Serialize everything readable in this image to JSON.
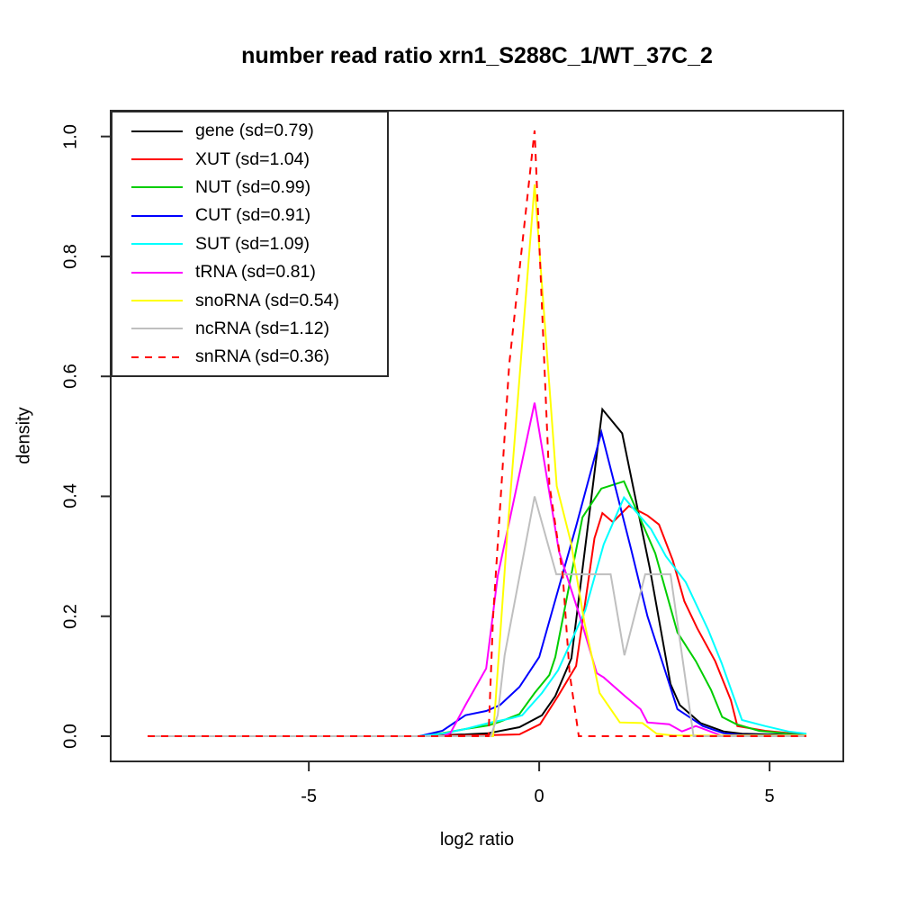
{
  "figure": {
    "title": "number read ratio xrn1_S288C_1/WT_37C_2",
    "xlabel": "log2 ratio",
    "ylabel": "density"
  },
  "colors": {
    "axis": "#2a2a2a",
    "background": "#ffffff"
  },
  "chart_data": {
    "type": "line",
    "title": "number read ratio xrn1_S288C_1/WT_37C_2",
    "xlabel": "log2 ratio",
    "ylabel": "density",
    "xlim": [
      -9.3,
      6.6
    ],
    "ylim": [
      -0.042,
      1.043
    ],
    "xticks": [
      "-5",
      "0",
      "5"
    ],
    "yticks": [
      "0.0",
      "0.2",
      "0.4",
      "0.6",
      "0.8",
      "1.0"
    ],
    "grid": false,
    "legend_position": "topleft",
    "series": [
      {
        "name": "gene",
        "label": "gene (sd=0.79)",
        "color": "#000000",
        "linestyle": "solid",
        "points": [
          [
            -8.5,
            0
          ],
          [
            -2.6,
            0
          ],
          [
            -2.1,
            0.002
          ],
          [
            -1.6,
            0.003
          ],
          [
            -1.1,
            0.005
          ],
          [
            -0.9,
            0.008
          ],
          [
            -0.43,
            0.015
          ],
          [
            0.06,
            0.035
          ],
          [
            0.35,
            0.067
          ],
          [
            0.7,
            0.13
          ],
          [
            1.37,
            0.545
          ],
          [
            1.8,
            0.505
          ],
          [
            2.4,
            0.28
          ],
          [
            2.85,
            0.087
          ],
          [
            3.05,
            0.052
          ],
          [
            3.5,
            0.022
          ],
          [
            4.0,
            0.008
          ],
          [
            4.4,
            0.004
          ],
          [
            5.0,
            0.003
          ],
          [
            5.8,
            0.002
          ]
        ]
      },
      {
        "name": "XUT",
        "label": "XUT (sd=1.04)",
        "color": "#FF0000",
        "linestyle": "solid",
        "points": [
          [
            -8.5,
            0
          ],
          [
            -2.6,
            0
          ],
          [
            -2.1,
            0.001
          ],
          [
            -1.6,
            0.001
          ],
          [
            -1.0,
            0.002
          ],
          [
            -0.43,
            0.003
          ],
          [
            0.02,
            0.02
          ],
          [
            0.41,
            0.067
          ],
          [
            0.8,
            0.117
          ],
          [
            1.2,
            0.33
          ],
          [
            1.37,
            0.372
          ],
          [
            1.6,
            0.357
          ],
          [
            1.95,
            0.384
          ],
          [
            2.35,
            0.368
          ],
          [
            2.6,
            0.353
          ],
          [
            2.9,
            0.293
          ],
          [
            3.15,
            0.225
          ],
          [
            3.43,
            0.18
          ],
          [
            3.82,
            0.125
          ],
          [
            4.16,
            0.06
          ],
          [
            4.3,
            0.017
          ],
          [
            4.9,
            0.009
          ],
          [
            5.45,
            0.005
          ],
          [
            5.8,
            0.002
          ]
        ]
      },
      {
        "name": "NUT",
        "label": "NUT (sd=0.99)",
        "color": "#00CD00",
        "linestyle": "solid",
        "points": [
          [
            -8.5,
            0
          ],
          [
            -2.6,
            0
          ],
          [
            -2.1,
            0.005
          ],
          [
            -1.6,
            0.012
          ],
          [
            -1.1,
            0.018
          ],
          [
            -0.86,
            0.024
          ],
          [
            -0.43,
            0.037
          ],
          [
            -0.1,
            0.072
          ],
          [
            0.22,
            0.102
          ],
          [
            0.35,
            0.132
          ],
          [
            0.94,
            0.365
          ],
          [
            1.35,
            0.413
          ],
          [
            1.84,
            0.425
          ],
          [
            2.52,
            0.305
          ],
          [
            3.0,
            0.173
          ],
          [
            3.4,
            0.125
          ],
          [
            3.73,
            0.077
          ],
          [
            3.97,
            0.032
          ],
          [
            4.28,
            0.02
          ],
          [
            4.77,
            0.009
          ],
          [
            5.4,
            0.004
          ],
          [
            5.8,
            0.002
          ]
        ]
      },
      {
        "name": "CUT",
        "label": "CUT (sd=0.91)",
        "color": "#0000FF",
        "linestyle": "solid",
        "points": [
          [
            -8.5,
            0
          ],
          [
            -2.6,
            0
          ],
          [
            -2.1,
            0.009
          ],
          [
            -1.6,
            0.035
          ],
          [
            -1.15,
            0.042
          ],
          [
            -0.85,
            0.052
          ],
          [
            -0.43,
            0.082
          ],
          [
            0.0,
            0.132
          ],
          [
            0.8,
            0.35
          ],
          [
            1.35,
            0.507
          ],
          [
            2.0,
            0.31
          ],
          [
            2.35,
            0.2
          ],
          [
            2.7,
            0.117
          ],
          [
            3.0,
            0.045
          ],
          [
            3.2,
            0.035
          ],
          [
            3.55,
            0.017
          ],
          [
            4.0,
            0.005
          ],
          [
            4.4,
            0.002
          ],
          [
            5.8,
            0.002
          ]
        ]
      },
      {
        "name": "SUT",
        "label": "SUT (sd=1.09)",
        "color": "#00FFFF",
        "linestyle": "solid",
        "points": [
          [
            -8.5,
            0
          ],
          [
            -2.6,
            0
          ],
          [
            -2.1,
            0.004
          ],
          [
            -1.6,
            0.012
          ],
          [
            -1.1,
            0.022
          ],
          [
            -0.6,
            0.03
          ],
          [
            -0.37,
            0.035
          ],
          [
            0.06,
            0.072
          ],
          [
            0.41,
            0.11
          ],
          [
            1.0,
            0.21
          ],
          [
            1.4,
            0.32
          ],
          [
            1.84,
            0.398
          ],
          [
            2.43,
            0.345
          ],
          [
            2.75,
            0.3
          ],
          [
            3.18,
            0.257
          ],
          [
            3.67,
            0.177
          ],
          [
            3.96,
            0.122
          ],
          [
            4.4,
            0.027
          ],
          [
            4.9,
            0.017
          ],
          [
            5.4,
            0.008
          ],
          [
            5.8,
            0.004
          ]
        ]
      },
      {
        "name": "tRNA",
        "label": "tRNA (sd=0.81)",
        "color": "#FF00FF",
        "linestyle": "solid",
        "points": [
          [
            -8.5,
            0
          ],
          [
            -2.1,
            0
          ],
          [
            -1.93,
            0.005
          ],
          [
            -1.6,
            0.052
          ],
          [
            -1.15,
            0.113
          ],
          [
            -0.9,
            0.267
          ],
          [
            -0.1,
            0.556
          ],
          [
            0.43,
            0.308
          ],
          [
            0.88,
            0.2
          ],
          [
            1.25,
            0.105
          ],
          [
            1.4,
            0.098
          ],
          [
            1.86,
            0.067
          ],
          [
            2.2,
            0.045
          ],
          [
            2.35,
            0.023
          ],
          [
            2.82,
            0.02
          ],
          [
            3.1,
            0.008
          ],
          [
            3.4,
            0.017
          ],
          [
            3.95,
            0.001
          ],
          [
            5.8,
            0.001
          ]
        ]
      },
      {
        "name": "snoRNA",
        "label": "snoRNA (sd=0.54)",
        "color": "#FFFF00",
        "linestyle": "solid",
        "points": [
          [
            -8.5,
            0
          ],
          [
            -1.0,
            0
          ],
          [
            -0.7,
            0.33
          ],
          [
            -0.1,
            0.92
          ],
          [
            0.38,
            0.417
          ],
          [
            0.69,
            0.323
          ],
          [
            0.98,
            0.19
          ],
          [
            1.18,
            0.12
          ],
          [
            1.31,
            0.072
          ],
          [
            1.75,
            0.023
          ],
          [
            2.24,
            0.022
          ],
          [
            2.55,
            0.004
          ],
          [
            2.92,
            0.001
          ],
          [
            5.8,
            0.001
          ]
        ]
      },
      {
        "name": "ncRNA",
        "label": "ncRNA (sd=1.12)",
        "color": "#BFBFBF",
        "linestyle": "solid",
        "points": [
          [
            -8.5,
            0
          ],
          [
            -1.05,
            0
          ],
          [
            -0.9,
            0.035
          ],
          [
            -0.75,
            0.135
          ],
          [
            -0.1,
            0.4
          ],
          [
            0.37,
            0.27
          ],
          [
            1.55,
            0.27
          ],
          [
            1.85,
            0.135
          ],
          [
            2.3,
            0.27
          ],
          [
            2.85,
            0.27
          ],
          [
            3.35,
            0
          ],
          [
            5.8,
            0
          ]
        ]
      },
      {
        "name": "snRNA",
        "label": "snRNA (sd=0.36)",
        "color": "#FF0000",
        "linestyle": "dashed",
        "points": [
          [
            -8.5,
            0
          ],
          [
            -1.1,
            0
          ],
          [
            -1.0,
            0.2
          ],
          [
            -0.65,
            0.62
          ],
          [
            -0.1,
            1.01
          ],
          [
            0.22,
            0.42
          ],
          [
            0.51,
            0.27
          ],
          [
            0.66,
            0.105
          ],
          [
            0.86,
            0
          ],
          [
            5.8,
            0
          ]
        ]
      }
    ]
  }
}
